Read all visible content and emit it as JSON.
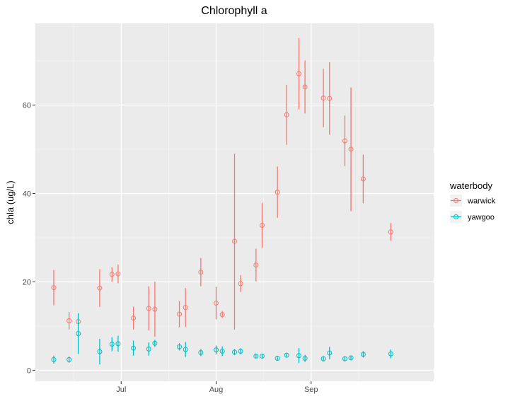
{
  "chart_data": {
    "type": "scatter",
    "title": "Chlorophyll a",
    "xlabel": "",
    "ylabel": "chla (ug/L)",
    "x_range": [
      "2017-06-03",
      "2017-10-11"
    ],
    "ylim": [
      -2.5,
      78.5
    ],
    "x_ticks": [
      {
        "date": "2017-07-01",
        "label": "Jul"
      },
      {
        "date": "2017-08-01",
        "label": "Aug"
      },
      {
        "date": "2017-09-01",
        "label": "Sep"
      }
    ],
    "y_ticks": [
      0,
      20,
      40,
      60
    ],
    "grid": true,
    "error_bars": true,
    "legend": {
      "title": "waterbody",
      "position": "right"
    },
    "series": [
      {
        "name": "warwick",
        "color": "#F8766D",
        "points": [
          {
            "x": "2017-06-09",
            "y": 18.7,
            "ymin": 14.7,
            "ymax": 22.7
          },
          {
            "x": "2017-06-14",
            "y": 11.2,
            "ymin": 9.2,
            "ymax": 13.2
          },
          {
            "x": "2017-06-17",
            "y": 11.0,
            "ymin": 9.3,
            "ymax": 12.7
          },
          {
            "x": "2017-06-24",
            "y": 18.6,
            "ymin": 14.3,
            "ymax": 22.9
          },
          {
            "x": "2017-06-28",
            "y": 21.7,
            "ymin": 20.0,
            "ymax": 23.3
          },
          {
            "x": "2017-06-30",
            "y": 21.8,
            "ymin": 19.7,
            "ymax": 23.9
          },
          {
            "x": "2017-07-05",
            "y": 11.8,
            "ymin": 9.2,
            "ymax": 14.4
          },
          {
            "x": "2017-07-10",
            "y": 14.0,
            "ymin": 9.0,
            "ymax": 19.0
          },
          {
            "x": "2017-07-12",
            "y": 13.8,
            "ymin": 7.6,
            "ymax": 20.0
          },
          {
            "x": "2017-07-20",
            "y": 12.7,
            "ymin": 9.7,
            "ymax": 15.7
          },
          {
            "x": "2017-07-22",
            "y": 14.2,
            "ymin": 9.8,
            "ymax": 18.6
          },
          {
            "x": "2017-07-27",
            "y": 22.2,
            "ymin": 19.0,
            "ymax": 25.4
          },
          {
            "x": "2017-08-01",
            "y": 15.2,
            "ymin": 11.5,
            "ymax": 18.9
          },
          {
            "x": "2017-08-03",
            "y": 12.6,
            "ymin": 11.8,
            "ymax": 13.4
          },
          {
            "x": "2017-08-07",
            "y": 29.2,
            "ymin": 9.2,
            "ymax": 49.0
          },
          {
            "x": "2017-08-09",
            "y": 19.6,
            "ymin": 17.7,
            "ymax": 21.5
          },
          {
            "x": "2017-08-14",
            "y": 23.8,
            "ymin": 20.1,
            "ymax": 27.5
          },
          {
            "x": "2017-08-16",
            "y": 32.8,
            "ymin": 27.7,
            "ymax": 37.9
          },
          {
            "x": "2017-08-21",
            "y": 40.3,
            "ymin": 34.5,
            "ymax": 46.1
          },
          {
            "x": "2017-08-24",
            "y": 57.8,
            "ymin": 51.0,
            "ymax": 64.6
          },
          {
            "x": "2017-08-28",
            "y": 67.1,
            "ymin": 59.0,
            "ymax": 75.2
          },
          {
            "x": "2017-08-30",
            "y": 64.1,
            "ymin": 58.1,
            "ymax": 70.1
          },
          {
            "x": "2017-09-05",
            "y": 61.6,
            "ymin": 55.0,
            "ymax": 68.2
          },
          {
            "x": "2017-09-07",
            "y": 61.5,
            "ymin": 53.3,
            "ymax": 69.7
          },
          {
            "x": "2017-09-12",
            "y": 51.9,
            "ymin": 46.2,
            "ymax": 57.6
          },
          {
            "x": "2017-09-14",
            "y": 50.0,
            "ymin": 36.0,
            "ymax": 64.0
          },
          {
            "x": "2017-09-18",
            "y": 43.3,
            "ymin": 37.8,
            "ymax": 48.8
          },
          {
            "x": "2017-09-27",
            "y": 31.3,
            "ymin": 29.3,
            "ymax": 33.3
          }
        ]
      },
      {
        "name": "yawgoo",
        "color": "#00BFC4",
        "points": [
          {
            "x": "2017-06-09",
            "y": 2.4,
            "ymin": 1.5,
            "ymax": 3.3
          },
          {
            "x": "2017-06-14",
            "y": 2.4,
            "ymin": 1.7,
            "ymax": 3.1
          },
          {
            "x": "2017-06-17",
            "y": 8.3,
            "ymin": 3.7,
            "ymax": 12.9
          },
          {
            "x": "2017-06-24",
            "y": 4.2,
            "ymin": 1.3,
            "ymax": 7.1
          },
          {
            "x": "2017-06-28",
            "y": 5.9,
            "ymin": 4.3,
            "ymax": 7.5
          },
          {
            "x": "2017-06-30",
            "y": 6.0,
            "ymin": 4.2,
            "ymax": 7.8
          },
          {
            "x": "2017-07-05",
            "y": 5.0,
            "ymin": 3.3,
            "ymax": 6.7
          },
          {
            "x": "2017-07-10",
            "y": 4.8,
            "ymin": 3.3,
            "ymax": 6.3
          },
          {
            "x": "2017-07-12",
            "y": 6.1,
            "ymin": 5.3,
            "ymax": 6.9
          },
          {
            "x": "2017-07-20",
            "y": 5.3,
            "ymin": 4.5,
            "ymax": 6.1
          },
          {
            "x": "2017-07-22",
            "y": 4.7,
            "ymin": 3.0,
            "ymax": 6.4
          },
          {
            "x": "2017-07-27",
            "y": 4.0,
            "ymin": 3.2,
            "ymax": 4.8
          },
          {
            "x": "2017-08-01",
            "y": 4.6,
            "ymin": 3.6,
            "ymax": 5.6
          },
          {
            "x": "2017-08-03",
            "y": 4.3,
            "ymin": 3.2,
            "ymax": 5.4
          },
          {
            "x": "2017-08-07",
            "y": 4.1,
            "ymin": 3.4,
            "ymax": 4.8
          },
          {
            "x": "2017-08-09",
            "y": 4.3,
            "ymin": 3.6,
            "ymax": 5.0
          },
          {
            "x": "2017-08-14",
            "y": 3.2,
            "ymin": 2.8,
            "ymax": 3.6
          },
          {
            "x": "2017-08-16",
            "y": 3.2,
            "ymin": 2.8,
            "ymax": 3.6
          },
          {
            "x": "2017-08-21",
            "y": 2.7,
            "ymin": 2.2,
            "ymax": 3.2
          },
          {
            "x": "2017-08-24",
            "y": 3.4,
            "ymin": 2.9,
            "ymax": 3.9
          },
          {
            "x": "2017-08-28",
            "y": 3.3,
            "ymin": 1.6,
            "ymax": 5.0
          },
          {
            "x": "2017-08-30",
            "y": 2.7,
            "ymin": 1.9,
            "ymax": 3.5
          },
          {
            "x": "2017-09-05",
            "y": 2.6,
            "ymin": 2.0,
            "ymax": 3.2
          },
          {
            "x": "2017-09-07",
            "y": 3.9,
            "ymin": 2.5,
            "ymax": 5.3
          },
          {
            "x": "2017-09-12",
            "y": 2.6,
            "ymin": 2.0,
            "ymax": 3.2
          },
          {
            "x": "2017-09-14",
            "y": 2.8,
            "ymin": 2.4,
            "ymax": 3.2
          },
          {
            "x": "2017-09-18",
            "y": 3.6,
            "ymin": 2.9,
            "ymax": 4.3
          },
          {
            "x": "2017-09-27",
            "y": 3.7,
            "ymin": 2.7,
            "ymax": 4.7
          }
        ]
      }
    ]
  }
}
